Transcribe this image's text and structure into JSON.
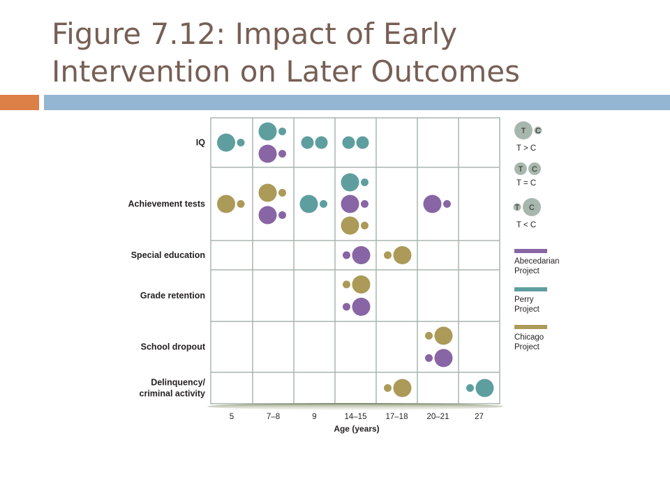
{
  "slide": {
    "title_line1": "Figure 7.12: Impact of Early",
    "title_line2": "Intervention on Later Outcomes",
    "colors": {
      "title": "#775f55",
      "accent_orange": "#dd8047",
      "accent_blue": "#94b6d2"
    }
  },
  "chart_data": {
    "type": "bubble-grid",
    "xlabel": "Age (years)",
    "columns": [
      "5",
      "7–8",
      "9",
      "14–15",
      "17–18",
      "20–21",
      "27"
    ],
    "rows": [
      "IQ",
      "Achievement tests",
      "Special education",
      "Grade retention",
      "School dropout",
      "Delinquency/\ncriminal activity"
    ],
    "projects": [
      {
        "name": "Abecedarian Project",
        "label_line1": "Abecedarian",
        "label_line2": "Project",
        "color": "#8865a4"
      },
      {
        "name": "Perry Project",
        "label_line1": "Perry",
        "label_line2": "Project",
        "color": "#5f9e9e"
      },
      {
        "name": "Chicago Project",
        "label_line1": "Chicago",
        "label_line2": "Project",
        "color": "#ab9a58"
      }
    ],
    "comparison_legend": [
      {
        "relation": "T > C",
        "t": "T",
        "c": "C"
      },
      {
        "relation": "T = C",
        "t": "T",
        "c": "C"
      },
      {
        "relation": "T < C",
        "t": "T",
        "c": "C"
      }
    ],
    "legend_bubble_color": "#a8b7ad",
    "findings": [
      {
        "row": "IQ",
        "column": "5",
        "project": "Perry Project",
        "relation": "T > C"
      },
      {
        "row": "IQ",
        "column": "7–8",
        "project": "Perry Project",
        "relation": "T > C"
      },
      {
        "row": "IQ",
        "column": "7–8",
        "project": "Abecedarian Project",
        "relation": "T > C"
      },
      {
        "row": "IQ",
        "column": "9",
        "project": "Perry Project",
        "relation": "T = C"
      },
      {
        "row": "IQ",
        "column": "14–15",
        "project": "Perry Project",
        "relation": "T = C"
      },
      {
        "row": "Achievement tests",
        "column": "5",
        "project": "Chicago Project",
        "relation": "T > C"
      },
      {
        "row": "Achievement tests",
        "column": "7–8",
        "project": "Chicago Project",
        "relation": "T > C"
      },
      {
        "row": "Achievement tests",
        "column": "7–8",
        "project": "Abecedarian Project",
        "relation": "T > C"
      },
      {
        "row": "Achievement tests",
        "column": "9",
        "project": "Perry Project",
        "relation": "T > C"
      },
      {
        "row": "Achievement tests",
        "column": "14–15",
        "project": "Perry Project",
        "relation": "T > C"
      },
      {
        "row": "Achievement tests",
        "column": "14–15",
        "project": "Abecedarian Project",
        "relation": "T > C"
      },
      {
        "row": "Achievement tests",
        "column": "14–15",
        "project": "Chicago Project",
        "relation": "T > C"
      },
      {
        "row": "Achievement tests",
        "column": "20–21",
        "project": "Abecedarian Project",
        "relation": "T > C"
      },
      {
        "row": "Special education",
        "column": "14–15",
        "project": "Abecedarian Project",
        "relation": "T < C"
      },
      {
        "row": "Special education",
        "column": "17–18",
        "project": "Chicago Project",
        "relation": "T < C"
      },
      {
        "row": "Grade retention",
        "column": "14–15",
        "project": "Chicago Project",
        "relation": "T < C"
      },
      {
        "row": "Grade retention",
        "column": "14–15",
        "project": "Abecedarian Project",
        "relation": "T < C"
      },
      {
        "row": "School dropout",
        "column": "20–21",
        "project": "Chicago Project",
        "relation": "T < C"
      },
      {
        "row": "School dropout",
        "column": "20–21",
        "project": "Abecedarian Project",
        "relation": "T < C"
      },
      {
        "row": "Delinquency/\ncriminal activity",
        "column": "17–18",
        "project": "Chicago Project",
        "relation": "T < C"
      },
      {
        "row": "Delinquency/\ncriminal activity",
        "column": "27",
        "project": "Perry Project",
        "relation": "T < C"
      }
    ]
  }
}
